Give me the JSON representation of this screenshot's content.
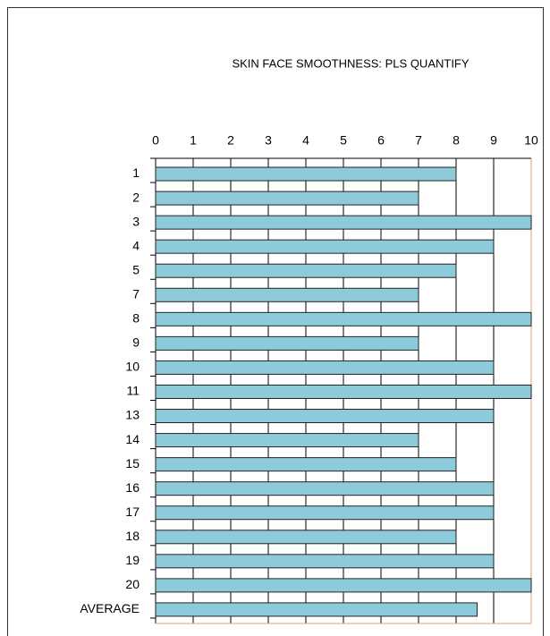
{
  "chart_data": {
    "type": "bar",
    "orientation": "horizontal",
    "title": "SKIN FACE SMOOTHNESS: PLS QUANTIFY",
    "categories": [
      "1",
      "2",
      "3",
      "4",
      "5",
      "7",
      "8",
      "9",
      "10",
      "11",
      "13",
      "14",
      "15",
      "16",
      "17",
      "18",
      "19",
      "20",
      "AVERAGE"
    ],
    "values": [
      8,
      7,
      10,
      9,
      8,
      7,
      10,
      7,
      9,
      10,
      9,
      7,
      8,
      9,
      9,
      8,
      9,
      10,
      8.56
    ],
    "color": "#8ecbda",
    "xlim": [
      0,
      10
    ],
    "xticks": [
      0,
      1,
      2,
      3,
      4,
      5,
      6,
      7,
      8,
      9,
      10
    ],
    "grid": true
  }
}
